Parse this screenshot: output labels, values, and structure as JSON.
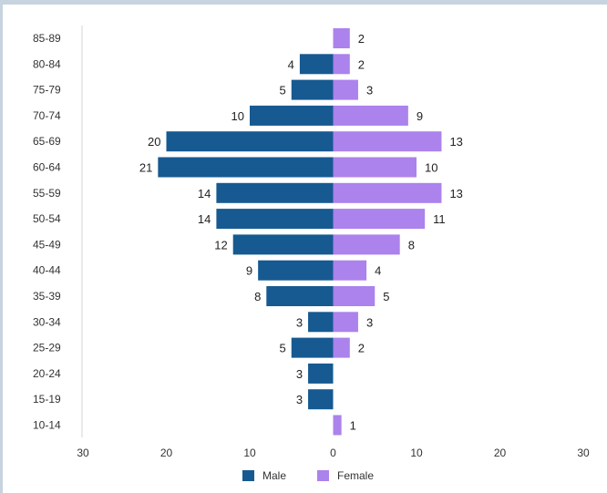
{
  "chart_data": {
    "type": "bar",
    "orientation": "horizontal-diverging",
    "categories": [
      "85-89",
      "80-84",
      "75-79",
      "70-74",
      "65-69",
      "60-64",
      "55-59",
      "50-54",
      "45-49",
      "40-44",
      "35-39",
      "30-34",
      "25-29",
      "20-24",
      "15-19",
      "10-14"
    ],
    "series": [
      {
        "name": "Male",
        "color": "#165a91",
        "values": [
          0,
          4,
          5,
          10,
          20,
          21,
          14,
          14,
          12,
          9,
          8,
          3,
          5,
          3,
          3,
          0
        ]
      },
      {
        "name": "Female",
        "color": "#ac82ec",
        "values": [
          2,
          2,
          3,
          9,
          13,
          10,
          13,
          11,
          8,
          4,
          5,
          3,
          2,
          0,
          0,
          1
        ]
      }
    ],
    "xlim": [
      -30,
      30
    ],
    "x_ticks": [
      -30,
      -20,
      -10,
      0,
      10,
      20,
      30
    ],
    "x_tick_labels": [
      "30",
      "20",
      "10",
      "0",
      "10",
      "20",
      "30"
    ],
    "legend_position": "bottom",
    "grid": false
  }
}
